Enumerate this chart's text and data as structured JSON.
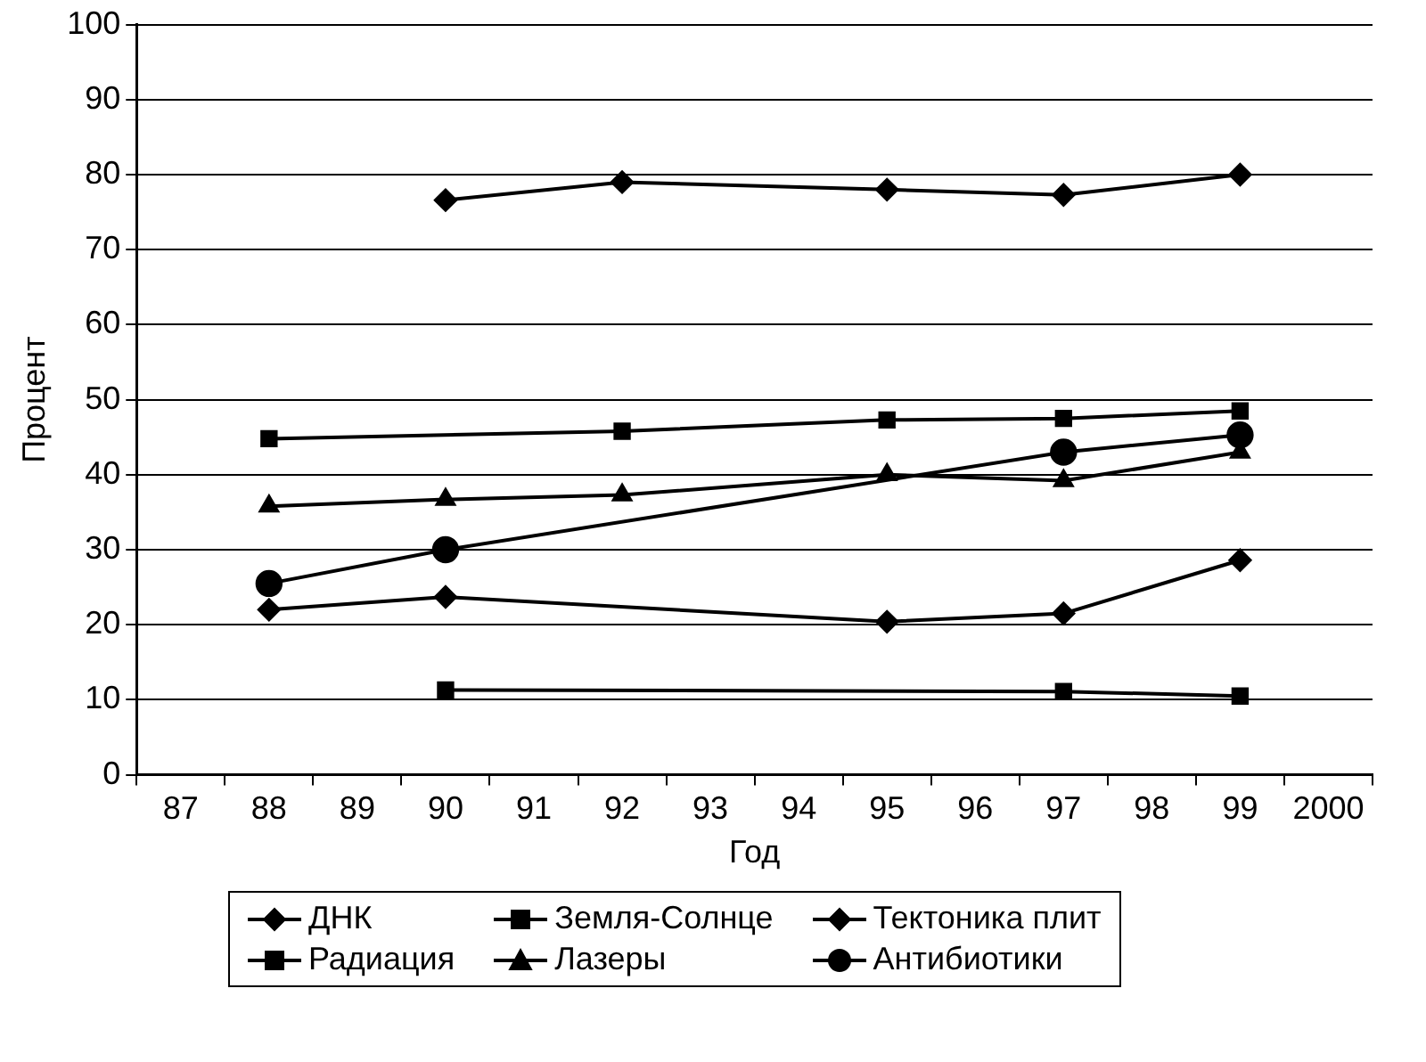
{
  "chart_data": {
    "type": "line",
    "xlabel": "Год",
    "ylabel": "Процент",
    "categories": [
      "87",
      "88",
      "89",
      "90",
      "91",
      "92",
      "93",
      "94",
      "95",
      "96",
      "97",
      "98",
      "99",
      "2000"
    ],
    "series": [
      {
        "name": "ДНК",
        "color": "#000000",
        "marker": "diamond",
        "values": [
          null,
          22,
          null,
          23.7,
          null,
          null,
          null,
          null,
          20.4,
          null,
          21.5,
          null,
          28.6,
          null
        ]
      },
      {
        "name": "Земля-Солнце",
        "color": "#000000",
        "marker": "square",
        "values": [
          null,
          44.8,
          null,
          null,
          null,
          45.8,
          null,
          null,
          47.3,
          null,
          47.5,
          null,
          48.5,
          null
        ]
      },
      {
        "name": "Тектоника плит",
        "color": "#000000",
        "marker": "diamond",
        "values": [
          null,
          null,
          null,
          76.6,
          null,
          79,
          null,
          null,
          78,
          null,
          77.3,
          null,
          80,
          null
        ]
      },
      {
        "name": "Радиация",
        "color": "#000000",
        "marker": "square",
        "values": [
          null,
          null,
          null,
          11.3,
          null,
          null,
          null,
          null,
          null,
          null,
          11.1,
          null,
          10.5,
          null
        ]
      },
      {
        "name": "Лазеры",
        "color": "#000000",
        "marker": "triangle",
        "values": [
          null,
          35.8,
          null,
          36.7,
          null,
          37.3,
          null,
          null,
          40,
          null,
          39.2,
          null,
          43,
          null
        ]
      },
      {
        "name": "Антибиотики",
        "color": "#000000",
        "marker": "circle",
        "values": [
          null,
          25.5,
          null,
          30,
          null,
          null,
          null,
          null,
          null,
          null,
          43,
          null,
          45.3,
          null
        ]
      }
    ],
    "ylim": [
      0,
      100
    ],
    "yticks": [
      0,
      10,
      20,
      30,
      40,
      50,
      60,
      70,
      80,
      90,
      100
    ],
    "grid": "y",
    "legend": "bottom",
    "line_style": "solid"
  }
}
